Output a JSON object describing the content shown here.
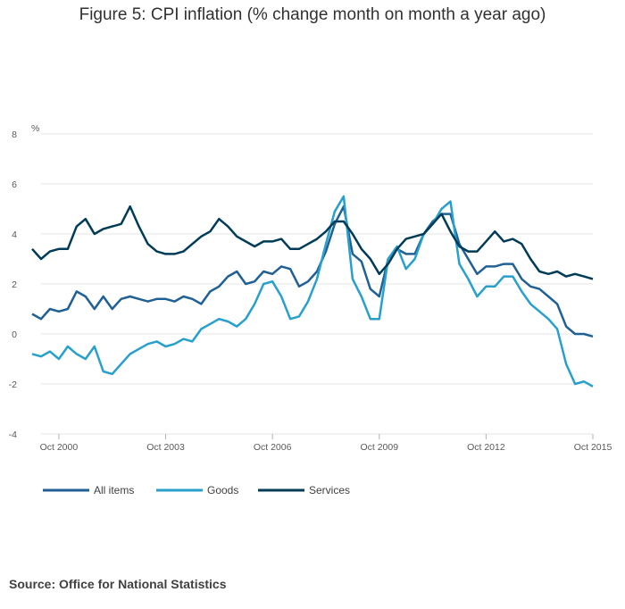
{
  "chart_data": {
    "type": "line",
    "title": "Figure 5: CPI inflation (% change month on month a year ago)",
    "ylabel": "%",
    "xlabel": "",
    "ylim": [
      -4,
      8
    ],
    "yticks": [
      "8",
      "6",
      "4",
      "2",
      "0",
      "-2",
      "-4"
    ],
    "xlim": [
      2000.0,
      2015.75
    ],
    "xtick_labels": [
      "Oct 2000",
      "Oct 2003",
      "Oct 2006",
      "Oct 2009",
      "Oct 2012",
      "Oct 2015"
    ],
    "xtick_values": [
      2000.75,
      2003.75,
      2006.75,
      2009.75,
      2012.75,
      2015.75
    ],
    "legend_position": "bottom-left",
    "series": [
      {
        "name": "All items",
        "color": "#206095",
        "x": [
          2000.0,
          2000.25,
          2000.5,
          2000.75,
          2001.0,
          2001.25,
          2001.5,
          2001.75,
          2002.0,
          2002.25,
          2002.5,
          2002.75,
          2003.0,
          2003.25,
          2003.5,
          2003.75,
          2004.0,
          2004.25,
          2004.5,
          2004.75,
          2005.0,
          2005.25,
          2005.5,
          2005.75,
          2006.0,
          2006.25,
          2006.5,
          2006.75,
          2007.0,
          2007.25,
          2007.5,
          2007.75,
          2008.0,
          2008.25,
          2008.5,
          2008.75,
          2009.0,
          2009.25,
          2009.5,
          2009.75,
          2010.0,
          2010.25,
          2010.5,
          2010.75,
          2011.0,
          2011.25,
          2011.5,
          2011.75,
          2012.0,
          2012.25,
          2012.5,
          2012.75,
          2013.0,
          2013.25,
          2013.5,
          2013.75,
          2014.0,
          2014.25,
          2014.5,
          2014.75,
          2015.0,
          2015.25,
          2015.5,
          2015.75
        ],
        "values": [
          0.8,
          0.6,
          1.0,
          0.9,
          1.0,
          1.7,
          1.5,
          1.0,
          1.5,
          1.0,
          1.4,
          1.5,
          1.4,
          1.3,
          1.4,
          1.4,
          1.3,
          1.5,
          1.4,
          1.2,
          1.7,
          1.9,
          2.3,
          2.5,
          2.0,
          2.1,
          2.5,
          2.4,
          2.7,
          2.6,
          1.9,
          2.1,
          2.5,
          3.3,
          4.4,
          5.1,
          3.2,
          2.9,
          1.8,
          1.5,
          3.0,
          3.4,
          3.2,
          3.2,
          4.0,
          4.5,
          4.8,
          4.8,
          3.6,
          3.0,
          2.4,
          2.7,
          2.7,
          2.8,
          2.8,
          2.2,
          1.9,
          1.8,
          1.5,
          1.2,
          0.3,
          0.0,
          0.0,
          -0.1
        ]
      },
      {
        "name": "Goods",
        "color": "#27a0cc",
        "x": [
          2000.0,
          2000.25,
          2000.5,
          2000.75,
          2001.0,
          2001.25,
          2001.5,
          2001.75,
          2002.0,
          2002.25,
          2002.5,
          2002.75,
          2003.0,
          2003.25,
          2003.5,
          2003.75,
          2004.0,
          2004.25,
          2004.5,
          2004.75,
          2005.0,
          2005.25,
          2005.5,
          2005.75,
          2006.0,
          2006.25,
          2006.5,
          2006.75,
          2007.0,
          2007.25,
          2007.5,
          2007.75,
          2008.0,
          2008.25,
          2008.5,
          2008.75,
          2009.0,
          2009.25,
          2009.5,
          2009.75,
          2010.0,
          2010.25,
          2010.5,
          2010.75,
          2011.0,
          2011.25,
          2011.5,
          2011.75,
          2012.0,
          2012.25,
          2012.5,
          2012.75,
          2013.0,
          2013.25,
          2013.5,
          2013.75,
          2014.0,
          2014.25,
          2014.5,
          2014.75,
          2015.0,
          2015.25,
          2015.5,
          2015.75
        ],
        "values": [
          -0.8,
          -0.9,
          -0.7,
          -1.0,
          -0.5,
          -0.8,
          -1.0,
          -0.5,
          -1.5,
          -1.6,
          -1.2,
          -0.8,
          -0.6,
          -0.4,
          -0.3,
          -0.5,
          -0.4,
          -0.2,
          -0.3,
          0.2,
          0.4,
          0.6,
          0.5,
          0.3,
          0.6,
          1.2,
          2.0,
          2.1,
          1.5,
          0.6,
          0.7,
          1.3,
          2.2,
          3.6,
          4.9,
          5.5,
          2.2,
          1.5,
          0.6,
          0.6,
          3.0,
          3.5,
          2.6,
          3.0,
          4.0,
          4.4,
          5.0,
          5.3,
          2.8,
          2.2,
          1.5,
          1.9,
          1.9,
          2.3,
          2.3,
          1.7,
          1.2,
          0.9,
          0.6,
          0.2,
          -1.2,
          -2.0,
          -1.9,
          -2.1
        ]
      },
      {
        "name": "Services",
        "color": "#003c57",
        "x": [
          2000.0,
          2000.25,
          2000.5,
          2000.75,
          2001.0,
          2001.25,
          2001.5,
          2001.75,
          2002.0,
          2002.25,
          2002.5,
          2002.75,
          2003.0,
          2003.25,
          2003.5,
          2003.75,
          2004.0,
          2004.25,
          2004.5,
          2004.75,
          2005.0,
          2005.25,
          2005.5,
          2005.75,
          2006.0,
          2006.25,
          2006.5,
          2006.75,
          2007.0,
          2007.25,
          2007.5,
          2007.75,
          2008.0,
          2008.25,
          2008.5,
          2008.75,
          2009.0,
          2009.25,
          2009.5,
          2009.75,
          2010.0,
          2010.25,
          2010.5,
          2010.75,
          2011.0,
          2011.25,
          2011.5,
          2011.75,
          2012.0,
          2012.25,
          2012.5,
          2012.75,
          2013.0,
          2013.25,
          2013.5,
          2013.75,
          2014.0,
          2014.25,
          2014.5,
          2014.75,
          2015.0,
          2015.25,
          2015.5,
          2015.75
        ],
        "values": [
          3.4,
          3.0,
          3.3,
          3.4,
          3.4,
          4.3,
          4.6,
          4.0,
          4.2,
          4.3,
          4.4,
          5.1,
          4.3,
          3.6,
          3.3,
          3.2,
          3.2,
          3.3,
          3.6,
          3.9,
          4.1,
          4.6,
          4.3,
          3.9,
          3.7,
          3.5,
          3.7,
          3.7,
          3.8,
          3.4,
          3.4,
          3.6,
          3.8,
          4.1,
          4.5,
          4.5,
          4.0,
          3.4,
          3.0,
          2.4,
          2.8,
          3.4,
          3.8,
          3.9,
          4.0,
          4.4,
          4.8,
          4.1,
          3.5,
          3.3,
          3.3,
          3.7,
          4.1,
          3.7,
          3.8,
          3.6,
          3.0,
          2.5,
          2.4,
          2.5,
          2.3,
          2.4,
          2.3,
          2.2
        ]
      }
    ]
  },
  "source": "Source: Office for National Statistics"
}
